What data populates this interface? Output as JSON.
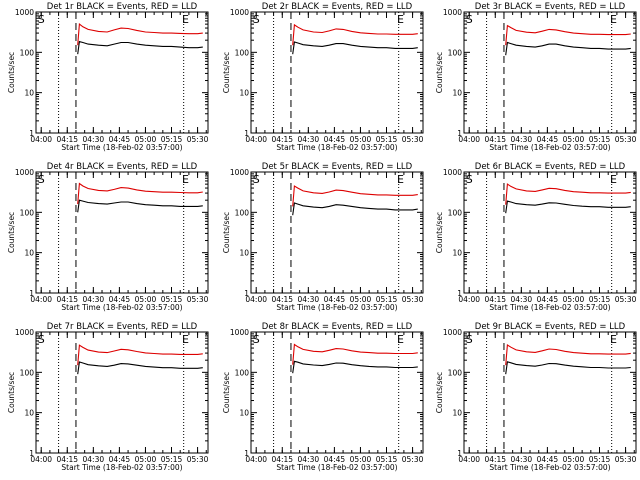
{
  "figure": {
    "time_axis_ticks": [
      "04:00",
      "04:15",
      "04:30",
      "04:45",
      "05:00",
      "05:15",
      "05:30"
    ],
    "y_axis_ticks": [
      "1",
      "10",
      "100",
      "1000"
    ],
    "xlabel": "Start Time (18-Feb-02 03:57:00)",
    "ylabel": "Counts/sec",
    "colors": {
      "events": "#000000",
      "lld": "#dd0000",
      "axes": "#000000",
      "background": "#ffffff"
    },
    "marker_labels": {
      "start": "S",
      "end": "E"
    }
  },
  "chart_data": [
    {
      "type": "line",
      "title": "Det 1r BLACK = Events, RED = LLD",
      "xlabel": "Start Time (18-Feb-02 03:57:00)",
      "ylabel": "Counts/sec",
      "yscale": "log",
      "xlim": [
        "03:57",
        "05:36"
      ],
      "ylim": [
        1,
        1000
      ],
      "x": [
        "04:21",
        "04:22",
        "04:24",
        "04:27",
        "04:33",
        "04:38",
        "04:42",
        "04:46",
        "04:50",
        "04:55",
        "05:00",
        "05:05",
        "05:10",
        "05:15",
        "05:20",
        "05:25",
        "05:30",
        "05:33"
      ],
      "series": [
        {
          "name": "Events",
          "color": "#000000",
          "values": [
            90,
            185,
            175,
            160,
            150,
            145,
            160,
            175,
            175,
            160,
            150,
            145,
            140,
            140,
            135,
            130,
            130,
            135
          ]
        },
        {
          "name": "LLD",
          "color": "#dd0000",
          "values": [
            150,
            500,
            430,
            370,
            330,
            320,
            360,
            400,
            390,
            350,
            320,
            310,
            300,
            300,
            295,
            290,
            290,
            300
          ]
        }
      ],
      "vertical_lines": [
        {
          "x": "04:10",
          "style": "dotted"
        },
        {
          "x": "04:20",
          "style": "dashed"
        },
        {
          "x": "05:22",
          "style": "dotted"
        }
      ],
      "markers": [
        {
          "label": "S",
          "x": "03:58"
        },
        {
          "label": "E",
          "x": "05:21"
        }
      ]
    },
    {
      "type": "line",
      "title": "Det 2r BLACK = Events, RED = LLD",
      "xlabel": "Start Time (18-Feb-02 03:57:00)",
      "ylabel": "Counts/sec",
      "yscale": "log",
      "xlim": [
        "03:57",
        "05:36"
      ],
      "ylim": [
        1,
        1000
      ],
      "x": [
        "04:21",
        "04:22",
        "04:24",
        "04:27",
        "04:33",
        "04:38",
        "04:42",
        "04:46",
        "04:50",
        "04:55",
        "05:00",
        "05:05",
        "05:10",
        "05:15",
        "05:20",
        "05:25",
        "05:30",
        "05:33"
      ],
      "series": [
        {
          "name": "Events",
          "color": "#000000",
          "values": [
            90,
            180,
            170,
            155,
            145,
            140,
            150,
            165,
            165,
            150,
            140,
            135,
            130,
            130,
            125,
            125,
            125,
            130
          ]
        },
        {
          "name": "LLD",
          "color": "#dd0000",
          "values": [
            150,
            480,
            420,
            360,
            320,
            310,
            340,
            380,
            370,
            330,
            305,
            295,
            285,
            285,
            280,
            280,
            280,
            290
          ]
        }
      ],
      "vertical_lines": [
        {
          "x": "04:10",
          "style": "dotted"
        },
        {
          "x": "04:20",
          "style": "dashed"
        },
        {
          "x": "05:22",
          "style": "dotted"
        }
      ],
      "markers": [
        {
          "label": "S",
          "x": "03:58"
        },
        {
          "label": "E",
          "x": "05:21"
        }
      ]
    },
    {
      "type": "line",
      "title": "Det 3r BLACK = Events, RED = LLD",
      "xlabel": "Start Time (18-Feb-02 03:57:00)",
      "ylabel": "Counts/sec",
      "yscale": "log",
      "xlim": [
        "03:57",
        "05:36"
      ],
      "ylim": [
        1,
        1000
      ],
      "x": [
        "04:21",
        "04:22",
        "04:24",
        "04:27",
        "04:33",
        "04:38",
        "04:42",
        "04:46",
        "04:50",
        "04:55",
        "05:00",
        "05:05",
        "05:10",
        "05:15",
        "05:20",
        "05:25",
        "05:30",
        "05:33"
      ],
      "series": [
        {
          "name": "Events",
          "color": "#000000",
          "values": [
            85,
            175,
            165,
            150,
            140,
            135,
            145,
            160,
            160,
            145,
            135,
            130,
            125,
            125,
            120,
            120,
            120,
            125
          ]
        },
        {
          "name": "LLD",
          "color": "#dd0000",
          "values": [
            150,
            460,
            410,
            350,
            315,
            305,
            335,
            370,
            360,
            325,
            300,
            290,
            280,
            280,
            275,
            275,
            275,
            285
          ]
        }
      ],
      "vertical_lines": [
        {
          "x": "04:10",
          "style": "dotted"
        },
        {
          "x": "04:20",
          "style": "dashed"
        },
        {
          "x": "05:22",
          "style": "dotted"
        }
      ],
      "markers": [
        {
          "label": "S",
          "x": "03:58"
        },
        {
          "label": "E",
          "x": "05:21"
        }
      ]
    },
    {
      "type": "line",
      "title": "Det 4r BLACK = Events, RED = LLD",
      "xlabel": "Start Time (18-Feb-02 03:57:00)",
      "ylabel": "Counts/sec",
      "yscale": "log",
      "xlim": [
        "03:57",
        "05:36"
      ],
      "ylim": [
        1,
        1000
      ],
      "x": [
        "04:21",
        "04:22",
        "04:24",
        "04:27",
        "04:33",
        "04:38",
        "04:42",
        "04:46",
        "04:50",
        "04:55",
        "05:00",
        "05:05",
        "05:10",
        "05:15",
        "05:20",
        "05:25",
        "05:30",
        "05:33"
      ],
      "series": [
        {
          "name": "Events",
          "color": "#000000",
          "values": [
            100,
            200,
            190,
            175,
            165,
            160,
            170,
            180,
            180,
            165,
            155,
            150,
            145,
            145,
            140,
            140,
            140,
            145
          ]
        },
        {
          "name": "LLD",
          "color": "#dd0000",
          "values": [
            160,
            520,
            450,
            390,
            350,
            340,
            370,
            410,
            400,
            360,
            335,
            325,
            315,
            315,
            310,
            305,
            305,
            320
          ]
        }
      ],
      "vertical_lines": [
        {
          "x": "04:10",
          "style": "dotted"
        },
        {
          "x": "04:20",
          "style": "dashed"
        },
        {
          "x": "05:22",
          "style": "dotted"
        }
      ],
      "markers": [
        {
          "label": "S",
          "x": "03:58"
        },
        {
          "label": "E",
          "x": "05:21"
        }
      ]
    },
    {
      "type": "line",
      "title": "Det 5r BLACK = Events, RED = LLD",
      "xlabel": "Start Time (18-Feb-02 03:57:00)",
      "ylabel": "Counts/sec",
      "yscale": "log",
      "xlim": [
        "03:57",
        "05:36"
      ],
      "ylim": [
        1,
        1000
      ],
      "x": [
        "04:21",
        "04:22",
        "04:24",
        "04:27",
        "04:33",
        "04:38",
        "04:42",
        "04:46",
        "04:50",
        "04:55",
        "05:00",
        "05:05",
        "05:10",
        "05:15",
        "05:20",
        "05:25",
        "05:30",
        "05:33"
      ],
      "series": [
        {
          "name": "Events",
          "color": "#000000",
          "values": [
            85,
            170,
            160,
            145,
            135,
            130,
            140,
            155,
            150,
            140,
            130,
            125,
            120,
            120,
            115,
            115,
            115,
            120
          ]
        },
        {
          "name": "LLD",
          "color": "#dd0000",
          "values": [
            140,
            450,
            400,
            340,
            305,
            295,
            320,
            355,
            345,
            315,
            290,
            280,
            270,
            270,
            265,
            265,
            265,
            275
          ]
        }
      ],
      "vertical_lines": [
        {
          "x": "04:10",
          "style": "dotted"
        },
        {
          "x": "04:20",
          "style": "dashed"
        },
        {
          "x": "05:22",
          "style": "dotted"
        }
      ],
      "markers": [
        {
          "label": "S",
          "x": "03:58"
        },
        {
          "label": "E",
          "x": "05:21"
        }
      ]
    },
    {
      "type": "line",
      "title": "Det 6r BLACK = Events, RED = LLD",
      "xlabel": "Start Time (18-Feb-02 03:57:00)",
      "ylabel": "Counts/sec",
      "yscale": "log",
      "xlim": [
        "03:57",
        "05:36"
      ],
      "ylim": [
        1,
        1000
      ],
      "x": [
        "04:21",
        "04:22",
        "04:24",
        "04:27",
        "04:33",
        "04:38",
        "04:42",
        "04:46",
        "04:50",
        "04:55",
        "05:00",
        "05:05",
        "05:10",
        "05:15",
        "05:20",
        "05:25",
        "05:30",
        "05:33"
      ],
      "series": [
        {
          "name": "Events",
          "color": "#000000",
          "values": [
            95,
            190,
            180,
            165,
            155,
            150,
            160,
            172,
            170,
            158,
            148,
            142,
            138,
            138,
            133,
            133,
            133,
            138
          ]
        },
        {
          "name": "LLD",
          "color": "#dd0000",
          "values": [
            155,
            500,
            440,
            380,
            340,
            330,
            360,
            395,
            385,
            350,
            325,
            315,
            305,
            305,
            300,
            300,
            300,
            312
          ]
        }
      ],
      "vertical_lines": [
        {
          "x": "04:10",
          "style": "dotted"
        },
        {
          "x": "04:20",
          "style": "dashed"
        },
        {
          "x": "05:22",
          "style": "dotted"
        }
      ],
      "markers": [
        {
          "label": "S",
          "x": "03:58"
        },
        {
          "label": "E",
          "x": "05:21"
        }
      ]
    },
    {
      "type": "line",
      "title": "Det 7r BLACK = Events, RED = LLD",
      "xlabel": "Start Time (18-Feb-02 03:57:00)",
      "ylabel": "Counts/sec",
      "yscale": "log",
      "xlim": [
        "03:57",
        "05:36"
      ],
      "ylim": [
        1,
        1000
      ],
      "x": [
        "04:21",
        "04:22",
        "04:24",
        "04:27",
        "04:33",
        "04:38",
        "04:42",
        "04:46",
        "04:50",
        "04:55",
        "05:00",
        "05:05",
        "05:10",
        "05:15",
        "05:20",
        "05:25",
        "05:30",
        "05:33"
      ],
      "series": [
        {
          "name": "Events",
          "color": "#000000",
          "values": [
            90,
            180,
            170,
            155,
            145,
            140,
            150,
            165,
            162,
            150,
            140,
            135,
            130,
            130,
            126,
            126,
            126,
            130
          ]
        },
        {
          "name": "LLD",
          "color": "#dd0000",
          "values": [
            150,
            470,
            415,
            355,
            318,
            308,
            338,
            372,
            362,
            328,
            303,
            293,
            283,
            283,
            278,
            278,
            278,
            288
          ]
        }
      ],
      "vertical_lines": [
        {
          "x": "04:10",
          "style": "dotted"
        },
        {
          "x": "04:20",
          "style": "dashed"
        },
        {
          "x": "05:22",
          "style": "dotted"
        }
      ],
      "markers": [
        {
          "label": "S",
          "x": "03:58"
        },
        {
          "label": "E",
          "x": "05:21"
        }
      ]
    },
    {
      "type": "line",
      "title": "Det 8r BLACK = Events, RED = LLD",
      "xlabel": "Start Time (18-Feb-02 03:57:00)",
      "ylabel": "Counts/sec",
      "yscale": "log",
      "xlim": [
        "03:57",
        "05:36"
      ],
      "ylim": [
        1,
        1000
      ],
      "x": [
        "04:21",
        "04:22",
        "04:24",
        "04:27",
        "04:33",
        "04:38",
        "04:42",
        "04:46",
        "04:50",
        "04:55",
        "05:00",
        "05:05",
        "05:10",
        "05:15",
        "05:20",
        "05:25",
        "05:30",
        "05:33"
      ],
      "series": [
        {
          "name": "Events",
          "color": "#000000",
          "values": [
            95,
            188,
            178,
            162,
            152,
            147,
            157,
            170,
            168,
            155,
            146,
            140,
            136,
            136,
            132,
            132,
            132,
            136
          ]
        },
        {
          "name": "LLD",
          "color": "#dd0000",
          "values": [
            155,
            490,
            430,
            370,
            332,
            322,
            352,
            388,
            378,
            342,
            318,
            308,
            298,
            298,
            293,
            293,
            293,
            305
          ]
        }
      ],
      "vertical_lines": [
        {
          "x": "04:10",
          "style": "dotted"
        },
        {
          "x": "04:20",
          "style": "dashed"
        },
        {
          "x": "05:22",
          "style": "dotted"
        }
      ],
      "markers": [
        {
          "label": "S",
          "x": "03:58"
        },
        {
          "label": "E",
          "x": "05:21"
        }
      ]
    },
    {
      "type": "line",
      "title": "Det 9r BLACK = Events, RED = LLD",
      "xlabel": "Start Time (18-Feb-02 03:57:00)",
      "ylabel": "Counts/sec",
      "yscale": "log",
      "xlim": [
        "03:57",
        "05:36"
      ],
      "ylim": [
        1,
        1000
      ],
      "x": [
        "04:21",
        "04:22",
        "04:24",
        "04:27",
        "04:33",
        "04:38",
        "04:42",
        "04:46",
        "04:50",
        "04:55",
        "05:00",
        "05:05",
        "05:10",
        "05:15",
        "05:20",
        "05:25",
        "05:30",
        "05:33"
      ],
      "series": [
        {
          "name": "Events",
          "color": "#000000",
          "values": [
            90,
            182,
            172,
            157,
            147,
            142,
            152,
            166,
            164,
            151,
            142,
            137,
            132,
            132,
            128,
            128,
            128,
            132
          ]
        },
        {
          "name": "LLD",
          "color": "#dd0000",
          "values": [
            150,
            475,
            420,
            360,
            322,
            312,
            342,
            378,
            368,
            333,
            308,
            298,
            288,
            288,
            283,
            283,
            283,
            295
          ]
        }
      ],
      "vertical_lines": [
        {
          "x": "04:10",
          "style": "dotted"
        },
        {
          "x": "04:20",
          "style": "dashed"
        },
        {
          "x": "05:22",
          "style": "dotted"
        }
      ],
      "markers": [
        {
          "label": "S",
          "x": "03:58"
        },
        {
          "label": "E",
          "x": "05:21"
        }
      ]
    }
  ]
}
